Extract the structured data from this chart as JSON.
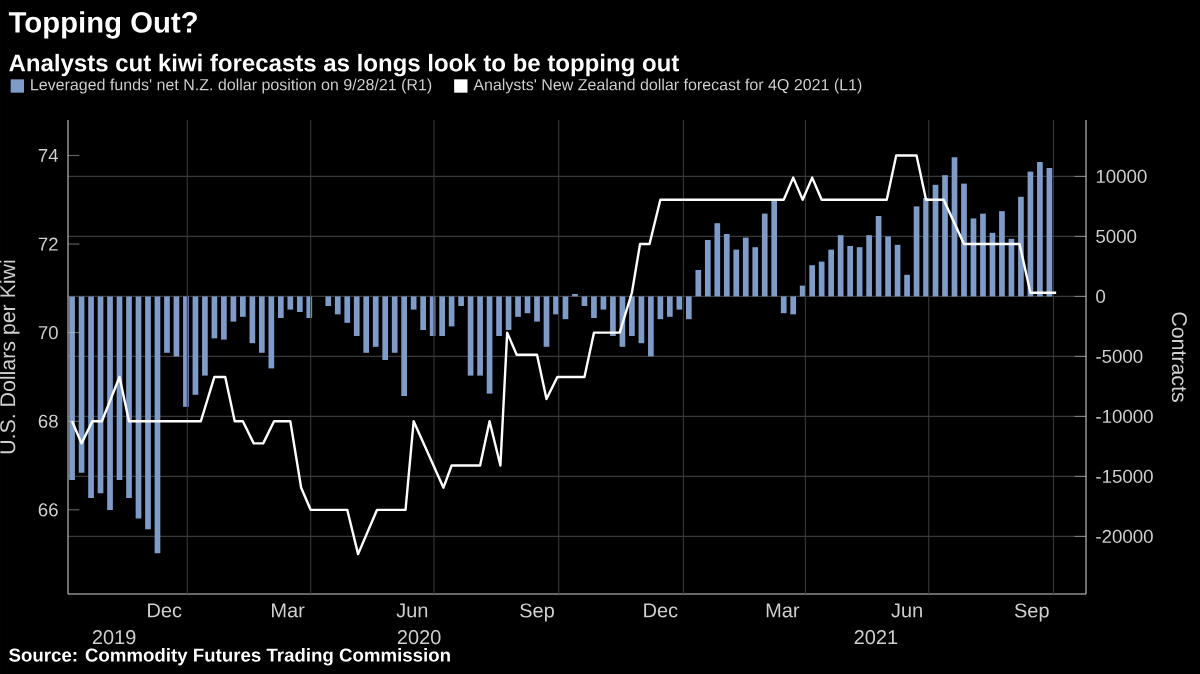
{
  "chart_data": {
    "type": "bar",
    "title": "Topping Out?",
    "subtitle": "Analysts cut kiwi forecasts as longs look to be topping out",
    "ylabel": "U.S. Dollars per Kiwi",
    "y2label": "Contracts",
    "annotations": [
      "Source: Commodity Futures Trading Commission"
    ],
    "xlim": [
      "2019-10-05",
      "2021-10-25"
    ],
    "xticks": [
      {
        "value": "2019-12-15",
        "label": "Dec"
      },
      {
        "value": "2020-03-15",
        "label": "Mar"
      },
      {
        "value": "2020-06-15",
        "label": "Jun"
      },
      {
        "value": "2020-09-15",
        "label": "Sep"
      },
      {
        "value": "2020-12-15",
        "label": "Dec"
      },
      {
        "value": "2021-03-15",
        "label": "Mar"
      },
      {
        "value": "2021-06-15",
        "label": "Jun"
      },
      {
        "value": "2021-09-15",
        "label": "Sep"
      },
      {
        "value": "2020-01-01",
        "label": null
      },
      {
        "value": "2020-04-01",
        "label": null
      },
      {
        "value": "2020-07-01",
        "label": null
      },
      {
        "value": "2020-10-01",
        "label": null
      },
      {
        "value": "2021-01-01",
        "label": null
      },
      {
        "value": "2021-04-01",
        "label": null
      },
      {
        "value": "2021-07-01",
        "label": null
      },
      {
        "value": "2021-10-01",
        "label": null
      }
    ],
    "x2lim": [
      "2019-10-05",
      "2021-10-25"
    ],
    "x2ticks": [
      {
        "value": "2019-11-08",
        "label": "2019"
      },
      {
        "value": "2020-06-20",
        "label": "2020"
      },
      {
        "value": "2021-05-23",
        "label": "2021"
      },
      {
        "value": "2020-01-01",
        "label": null
      },
      {
        "value": "2021-01-01",
        "label": null
      }
    ],
    "ylim": [
      64.1,
      74.8
    ],
    "yticks": [
      66,
      68,
      70,
      72,
      74
    ],
    "y2lim": [
      -24800,
      14700
    ],
    "y2ticks": [
      -20000,
      -15000,
      -10000,
      -5000,
      0,
      5000,
      10000
    ],
    "grid": true,
    "legend": "top left",
    "series": [
      {
        "name": "Leveraged funds' net N.Z. dollar position on 9/28/21 (R1)",
        "axis": "y2",
        "color": "#7f9cc9",
        "x": [
          "2019-10-08",
          "2019-10-15",
          "2019-10-22",
          "2019-10-29",
          "2019-11-05",
          "2019-11-12",
          "2019-11-19",
          "2019-11-26",
          "2019-12-03",
          "2019-12-10",
          "2019-12-17",
          "2019-12-24",
          "2019-12-31",
          "2020-01-07",
          "2020-01-14",
          "2020-01-21",
          "2020-01-28",
          "2020-02-04",
          "2020-02-11",
          "2020-02-18",
          "2020-02-25",
          "2020-03-03",
          "2020-03-10",
          "2020-03-17",
          "2020-03-24",
          "2020-03-31",
          "2020-04-07",
          "2020-04-14",
          "2020-04-21",
          "2020-04-28",
          "2020-05-05",
          "2020-05-12",
          "2020-05-19",
          "2020-05-26",
          "2020-06-02",
          "2020-06-09",
          "2020-06-16",
          "2020-06-23",
          "2020-06-30",
          "2020-07-07",
          "2020-07-14",
          "2020-07-21",
          "2020-07-28",
          "2020-08-04",
          "2020-08-11",
          "2020-08-18",
          "2020-08-25",
          "2020-09-01",
          "2020-09-08",
          "2020-09-15",
          "2020-09-22",
          "2020-09-29",
          "2020-10-06",
          "2020-10-13",
          "2020-10-20",
          "2020-10-27",
          "2020-11-03",
          "2020-11-10",
          "2020-11-17",
          "2020-11-24",
          "2020-12-01",
          "2020-12-08",
          "2020-12-15",
          "2020-12-22",
          "2020-12-29",
          "2021-01-05",
          "2021-01-12",
          "2021-01-19",
          "2021-01-26",
          "2021-02-02",
          "2021-02-09",
          "2021-02-16",
          "2021-02-23",
          "2021-03-02",
          "2021-03-09",
          "2021-03-16",
          "2021-03-23",
          "2021-03-30",
          "2021-04-06",
          "2021-04-13",
          "2021-04-20",
          "2021-04-27",
          "2021-05-04",
          "2021-05-11",
          "2021-05-18",
          "2021-05-25",
          "2021-06-01",
          "2021-06-08",
          "2021-06-15",
          "2021-06-22",
          "2021-06-29",
          "2021-07-06",
          "2021-07-13",
          "2021-07-20",
          "2021-07-27",
          "2021-08-03",
          "2021-08-10",
          "2021-08-17",
          "2021-08-24",
          "2021-08-31",
          "2021-09-07",
          "2021-09-14",
          "2021-09-21",
          "2021-09-28"
        ],
        "values": [
          -15300,
          -14700,
          -16800,
          -16400,
          -17800,
          -15300,
          -16800,
          -18500,
          -19400,
          -21400,
          -4700,
          -5000,
          -9200,
          -8200,
          -6600,
          -3500,
          -3600,
          -2100,
          -1700,
          -3900,
          -4700,
          -6000,
          -1800,
          -1100,
          -1300,
          -1800,
          null,
          -800,
          -1500,
          -2200,
          -3300,
          -4700,
          -4200,
          -5300,
          -4700,
          -8300,
          -1100,
          -2800,
          -3300,
          -3300,
          -2500,
          -800,
          -6600,
          -6600,
          -8100,
          -3300,
          -2800,
          -1700,
          -1400,
          -2100,
          -4200,
          -1500,
          -1900,
          200,
          -800,
          -1800,
          -1100,
          -3300,
          -4200,
          -3300,
          -3900,
          -5000,
          -1900,
          -1700,
          -1100,
          -1900,
          2200,
          4700,
          6100,
          5200,
          3900,
          4900,
          4100,
          6900,
          8000,
          -1400,
          -1500,
          900,
          2600,
          2900,
          3900,
          5100,
          4200,
          4100,
          5100,
          6700,
          5000,
          4300,
          1800,
          7500,
          8200,
          9300,
          10100,
          11600,
          9400,
          6500,
          6900,
          5300,
          7100,
          4800,
          8300,
          10400,
          11200,
          10700
        ]
      },
      {
        "name": "Analysts' New Zealand dollar forecast for 4Q 2021 (L1)",
        "type": "line",
        "axis": "y",
        "color": "#ffffff",
        "x": [
          "2019-10-08",
          "2019-10-15",
          "2019-10-23",
          "2019-10-30",
          "2019-11-12",
          "2019-11-19",
          "2020-01-11",
          "2020-01-21",
          "2020-01-29",
          "2020-02-05",
          "2020-02-11",
          "2020-02-19",
          "2020-02-26",
          "2020-03-05",
          "2020-03-17",
          "2020-03-25",
          "2020-04-01",
          "2020-04-28",
          "2020-05-06",
          "2020-05-20",
          "2020-06-10",
          "2020-06-16",
          "2020-07-08",
          "2020-07-14",
          "2020-08-04",
          "2020-08-11",
          "2020-08-19",
          "2020-08-24",
          "2020-08-31",
          "2020-09-15",
          "2020-09-22",
          "2020-09-30",
          "2020-10-20",
          "2020-10-27",
          "2020-11-15",
          "2020-11-24",
          "2020-11-30",
          "2020-12-07",
          "2020-12-15",
          "2021-03-16",
          "2021-03-23",
          "2021-03-30",
          "2021-04-06",
          "2021-04-13",
          "2021-05-31",
          "2021-06-07",
          "2021-06-22",
          "2021-06-29",
          "2021-07-12",
          "2021-07-27",
          "2021-09-06",
          "2021-09-14",
          "2021-10-03"
        ],
        "values": [
          68,
          67.5,
          68,
          68,
          69,
          68,
          68,
          69,
          69,
          68,
          68,
          67.5,
          67.5,
          68,
          68,
          66.5,
          66,
          66,
          65,
          66,
          66,
          68,
          66.5,
          67,
          67,
          68,
          67,
          70,
          69.5,
          69.5,
          68.5,
          69,
          69,
          70,
          70,
          70.9,
          72,
          72,
          73,
          73,
          73.5,
          73,
          73.5,
          73,
          73,
          74,
          74,
          73,
          73,
          72,
          72,
          70.9,
          70.9
        ]
      }
    ]
  }
}
